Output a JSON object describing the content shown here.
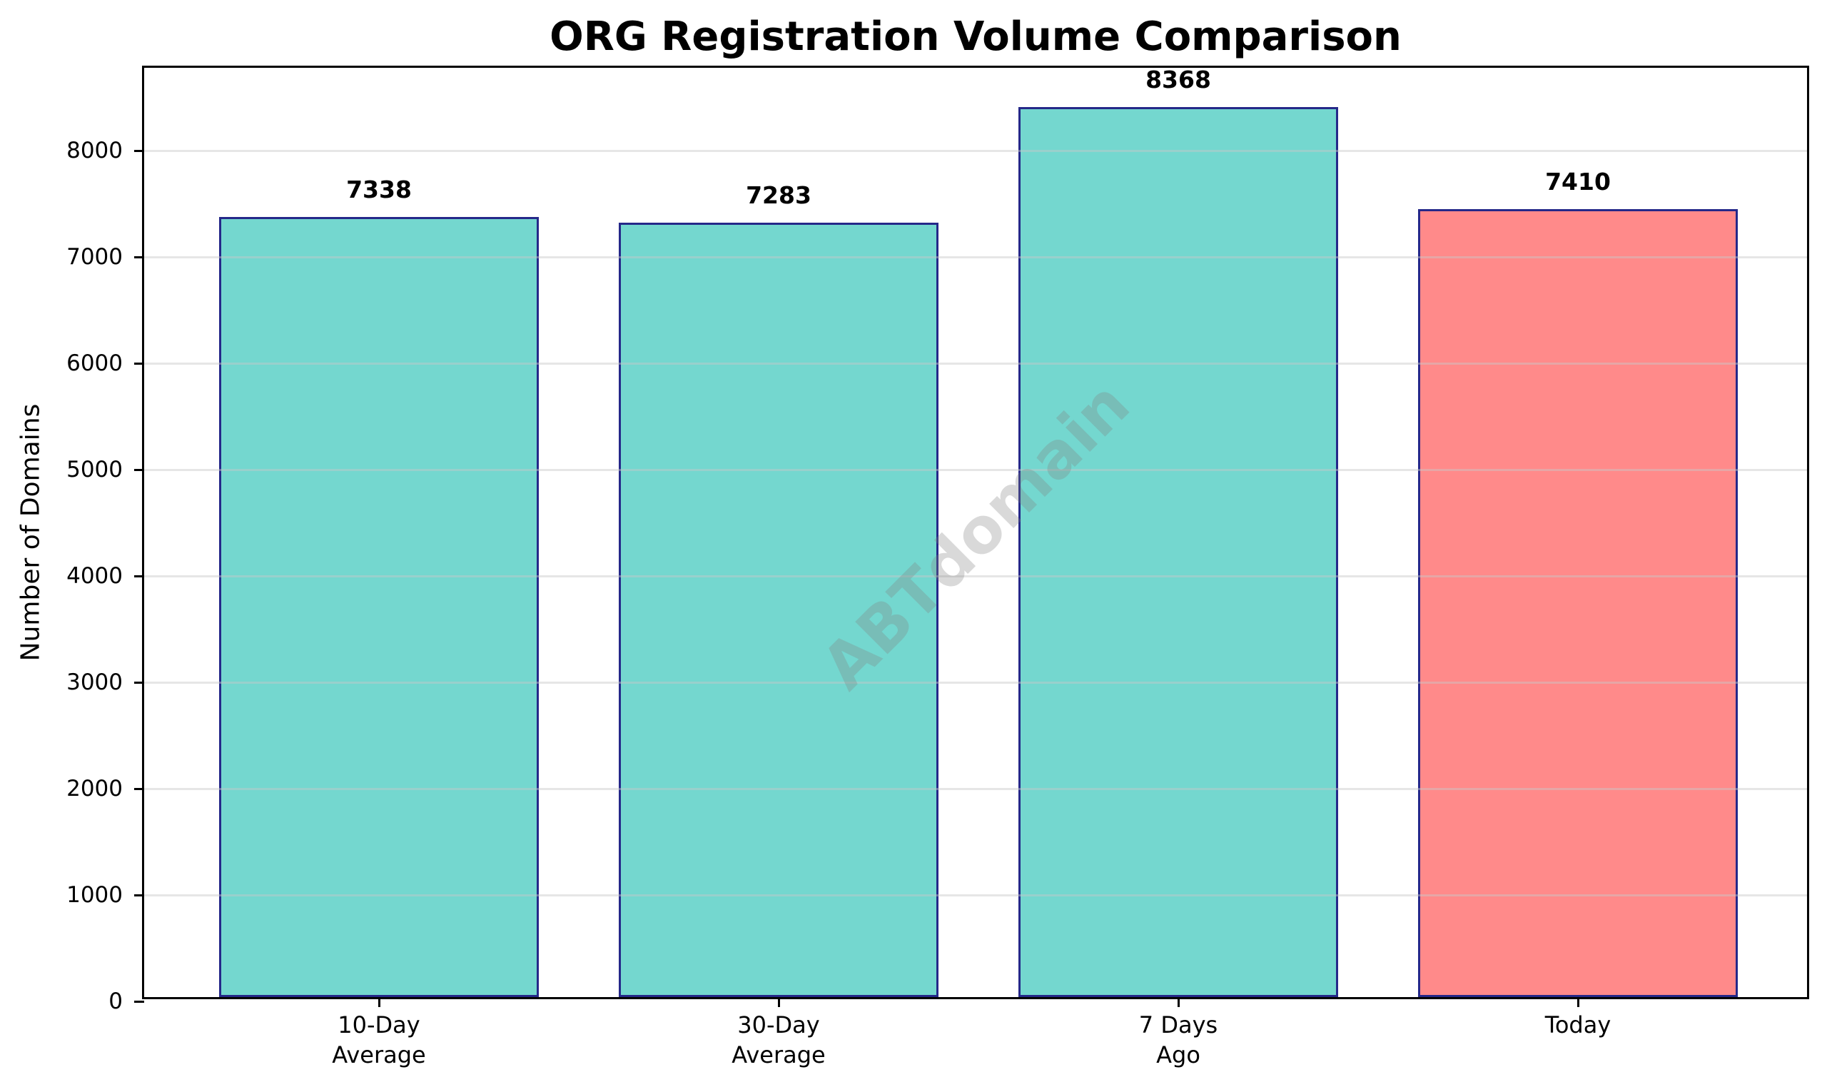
{
  "chart_data": {
    "type": "bar",
    "title": "ORG Registration Volume Comparison",
    "xlabel": "",
    "ylabel": "Number of Domains",
    "categories": [
      "10-Day\nAverage",
      "30-Day\nAverage",
      "7 Days\nAgo",
      "Today"
    ],
    "category_lines": [
      [
        "10-Day",
        "Average"
      ],
      [
        "30-Day",
        "Average"
      ],
      [
        "7 Days",
        "Ago"
      ],
      [
        "Today"
      ]
    ],
    "values": [
      7338,
      7283,
      8368,
      7410
    ],
    "value_labels": [
      "7338",
      "7283",
      "8368",
      "7410"
    ],
    "bar_colors": [
      "#74d7cf",
      "#74d7cf",
      "#74d7cf",
      "#ff8a8a"
    ],
    "edge_color": "#252889",
    "ylim": [
      0,
      8779
    ],
    "yticks": [
      0,
      1000,
      2000,
      3000,
      4000,
      5000,
      6000,
      7000,
      8000
    ],
    "grid": {
      "axis": "y",
      "on": true
    },
    "legend": null,
    "watermark": "ABTdomain"
  }
}
